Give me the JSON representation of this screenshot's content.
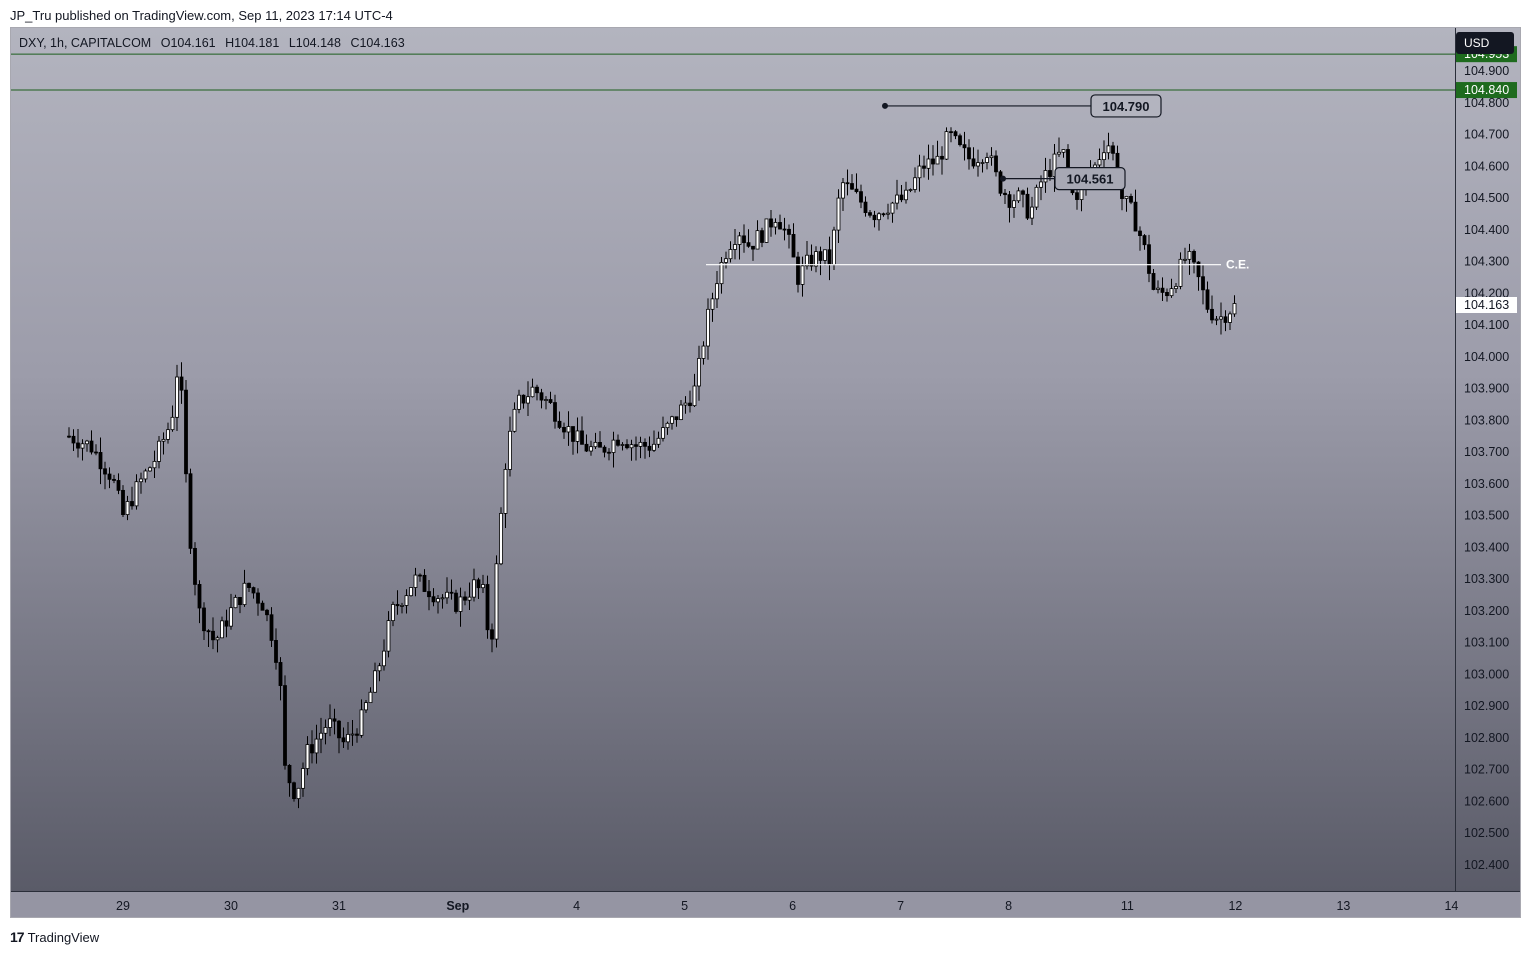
{
  "header": {
    "publisher_text": "JP_Tru published on TradingView.com, Sep 11, 2023 17:14 UTC-4"
  },
  "legend": {
    "symbol": "DXY, 1h, CAPITALCOM",
    "open": "O104.161",
    "high": "H104.181",
    "low": "L104.148",
    "close": "C104.163"
  },
  "currency_button": "USD",
  "footer": {
    "brand": "TradingView"
  },
  "colors": {
    "up": "#ffffff",
    "down": "#000000",
    "level_line": "#1e5e1e",
    "level_badge": "#1e6b1e",
    "ce_line": "#ffffff"
  },
  "chart_data": {
    "type": "candlestick",
    "symbol": "DXY",
    "interval": "1h",
    "ylim": [
      102.3,
      105.0
    ],
    "y_ticks": [
      "104.900",
      "104.800",
      "104.700",
      "104.600",
      "104.500",
      "104.400",
      "104.300",
      "104.200",
      "104.100",
      "104.000",
      "103.900",
      "103.800",
      "103.700",
      "103.600",
      "103.500",
      "103.400",
      "103.300",
      "103.200",
      "103.100",
      "103.000",
      "102.900",
      "102.800",
      "102.700",
      "102.600",
      "102.500",
      "102.400"
    ],
    "x_ticks": [
      {
        "label": "29",
        "t": 0.5
      },
      {
        "label": "30",
        "t": 1.5
      },
      {
        "label": "31",
        "t": 2.5
      },
      {
        "label": "Sep",
        "t": 3.6,
        "bold": true
      },
      {
        "label": "4",
        "t": 4.7
      },
      {
        "label": "5",
        "t": 5.7
      },
      {
        "label": "6",
        "t": 6.7
      },
      {
        "label": "7",
        "t": 7.7
      },
      {
        "label": "8",
        "t": 8.7
      },
      {
        "label": "11",
        "t": 9.8
      },
      {
        "label": "12",
        "t": 10.8
      },
      {
        "label": "13",
        "t": 11.8
      },
      {
        "label": "14",
        "t": 12.8
      }
    ],
    "price_path": [
      [
        0.0,
        103.75
      ],
      [
        0.2,
        103.72
      ],
      [
        0.4,
        103.62
      ],
      [
        0.5,
        103.5
      ],
      [
        0.65,
        103.6
      ],
      [
        0.8,
        103.68
      ],
      [
        0.95,
        103.8
      ],
      [
        1.0,
        103.95
      ],
      [
        1.05,
        103.85
      ],
      [
        1.1,
        103.5
      ],
      [
        1.2,
        103.2
      ],
      [
        1.35,
        103.1
      ],
      [
        1.5,
        103.2
      ],
      [
        1.65,
        103.28
      ],
      [
        1.8,
        103.22
      ],
      [
        1.9,
        103.1
      ],
      [
        1.95,
        103.0
      ],
      [
        2.0,
        102.7
      ],
      [
        2.1,
        102.62
      ],
      [
        2.2,
        102.75
      ],
      [
        2.4,
        102.85
      ],
      [
        2.55,
        102.78
      ],
      [
        2.7,
        102.85
      ],
      [
        2.85,
        103.0
      ],
      [
        3.0,
        103.2
      ],
      [
        3.2,
        103.3
      ],
      [
        3.4,
        103.25
      ],
      [
        3.6,
        103.22
      ],
      [
        3.75,
        103.28
      ],
      [
        3.85,
        103.25
      ],
      [
        3.9,
        103.05
      ],
      [
        3.95,
        103.3
      ],
      [
        4.05,
        103.7
      ],
      [
        4.15,
        103.85
      ],
      [
        4.3,
        103.9
      ],
      [
        4.45,
        103.85
      ],
      [
        4.6,
        103.78
      ],
      [
        4.75,
        103.72
      ],
      [
        4.9,
        103.7
      ],
      [
        5.1,
        103.75
      ],
      [
        5.25,
        103.72
      ],
      [
        5.4,
        103.72
      ],
      [
        5.55,
        103.78
      ],
      [
        5.7,
        103.85
      ],
      [
        5.8,
        103.9
      ],
      [
        5.9,
        104.1
      ],
      [
        6.0,
        104.25
      ],
      [
        6.1,
        104.35
      ],
      [
        6.2,
        104.4
      ],
      [
        6.3,
        104.35
      ],
      [
        6.45,
        104.4
      ],
      [
        6.55,
        104.45
      ],
      [
        6.65,
        104.38
      ],
      [
        6.75,
        104.25
      ],
      [
        6.85,
        104.3
      ],
      [
        6.95,
        104.32
      ],
      [
        7.05,
        104.3
      ],
      [
        7.15,
        104.55
      ],
      [
        7.3,
        104.5
      ],
      [
        7.45,
        104.45
      ],
      [
        7.6,
        104.48
      ],
      [
        7.75,
        104.5
      ],
      [
        7.9,
        104.6
      ],
      [
        8.05,
        104.62
      ],
      [
        8.15,
        104.7
      ],
      [
        8.25,
        104.65
      ],
      [
        8.35,
        104.62
      ],
      [
        8.5,
        104.65
      ],
      [
        8.6,
        104.55
      ],
      [
        8.7,
        104.5
      ],
      [
        8.8,
        104.5
      ],
      [
        8.9,
        104.45
      ],
      [
        9.0,
        104.55
      ],
      [
        9.1,
        104.6
      ],
      [
        9.2,
        104.65
      ],
      [
        9.3,
        104.5
      ],
      [
        9.4,
        104.55
      ],
      [
        9.5,
        104.6
      ],
      [
        9.6,
        104.68
      ],
      [
        9.65,
        104.66
      ],
      [
        9.75,
        104.5
      ],
      [
        9.85,
        104.45
      ],
      [
        9.95,
        104.35
      ],
      [
        10.05,
        104.2
      ],
      [
        10.15,
        104.2
      ],
      [
        10.25,
        104.25
      ],
      [
        10.35,
        104.32
      ],
      [
        10.45,
        104.25
      ],
      [
        10.55,
        104.15
      ],
      [
        10.65,
        104.12
      ],
      [
        10.75,
        104.15
      ],
      [
        10.8,
        104.16
      ]
    ],
    "annotations": [
      {
        "type": "price_label",
        "price": 104.79,
        "text": "104.790"
      },
      {
        "type": "price_label",
        "price": 104.561,
        "text": "104.561"
      },
      {
        "type": "horizontal_line",
        "price": 104.29,
        "text": "C.E."
      }
    ],
    "horizontal_levels": [
      {
        "price": 104.953,
        "label": "104.953"
      },
      {
        "price": 104.84,
        "label": "104.840"
      }
    ],
    "last_price": {
      "price": 104.163,
      "label": "104.163"
    }
  }
}
